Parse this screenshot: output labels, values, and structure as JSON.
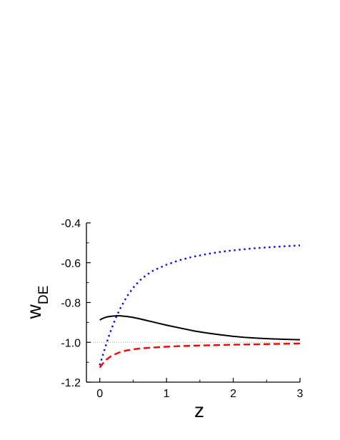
{
  "chart_data": {
    "type": "line",
    "title": "",
    "xlabel": "z",
    "ylabel_main": "w",
    "ylabel_sub": "DE",
    "xlim": [
      -0.2,
      3.0
    ],
    "ylim": [
      -1.2,
      -0.4
    ],
    "xticks": [
      0,
      1,
      2,
      3
    ],
    "xtick_labels": [
      "0",
      "1",
      "2",
      "3"
    ],
    "yticks": [
      -1.2,
      -1.0,
      -0.8,
      -0.6,
      -0.4
    ],
    "ytick_labels": [
      "-1.2",
      "-1.0",
      "-0.8",
      "-0.6",
      "-0.4"
    ],
    "grid": false,
    "reference_line": {
      "y": -1.0,
      "style": "dotted",
      "color": "#888888"
    },
    "series": [
      {
        "style": "solid",
        "color": "#000000",
        "x": [
          0.0,
          0.05,
          0.1,
          0.15,
          0.2,
          0.25,
          0.3,
          0.4,
          0.5,
          0.6,
          0.7,
          0.8,
          0.9,
          1.0,
          1.2,
          1.4,
          1.6,
          1.8,
          2.0,
          2.2,
          2.4,
          2.6,
          2.8,
          3.0
        ],
        "y": [
          -0.888,
          -0.879,
          -0.873,
          -0.87,
          -0.868,
          -0.867,
          -0.867,
          -0.87,
          -0.875,
          -0.882,
          -0.89,
          -0.898,
          -0.906,
          -0.914,
          -0.928,
          -0.942,
          -0.953,
          -0.962,
          -0.97,
          -0.976,
          -0.98,
          -0.983,
          -0.985,
          -0.987
        ]
      },
      {
        "style": "dashed",
        "color": "#ff0000",
        "x": [
          0.0,
          0.05,
          0.1,
          0.15,
          0.2,
          0.3,
          0.4,
          0.5,
          0.6,
          0.8,
          1.0,
          1.2,
          1.5,
          2.0,
          2.5,
          3.0
        ],
        "y": [
          -1.127,
          -1.105,
          -1.087,
          -1.074,
          -1.064,
          -1.05,
          -1.041,
          -1.035,
          -1.031,
          -1.026,
          -1.022,
          -1.019,
          -1.016,
          -1.012,
          -1.009,
          -1.006
        ]
      },
      {
        "style": "dotted",
        "color": "#0000ff",
        "x": [
          0.0,
          0.05,
          0.1,
          0.15,
          0.2,
          0.25,
          0.3,
          0.4,
          0.5,
          0.6,
          0.7,
          0.8,
          1.0,
          1.2,
          1.4,
          1.6,
          1.8,
          2.0,
          2.3,
          2.6,
          3.0
        ],
        "y": [
          -1.115,
          -1.06,
          -1.005,
          -0.956,
          -0.911,
          -0.87,
          -0.834,
          -0.773,
          -0.726,
          -0.689,
          -0.662,
          -0.64,
          -0.61,
          -0.587,
          -0.57,
          -0.557,
          -0.546,
          -0.538,
          -0.528,
          -0.521,
          -0.513
        ]
      }
    ]
  }
}
